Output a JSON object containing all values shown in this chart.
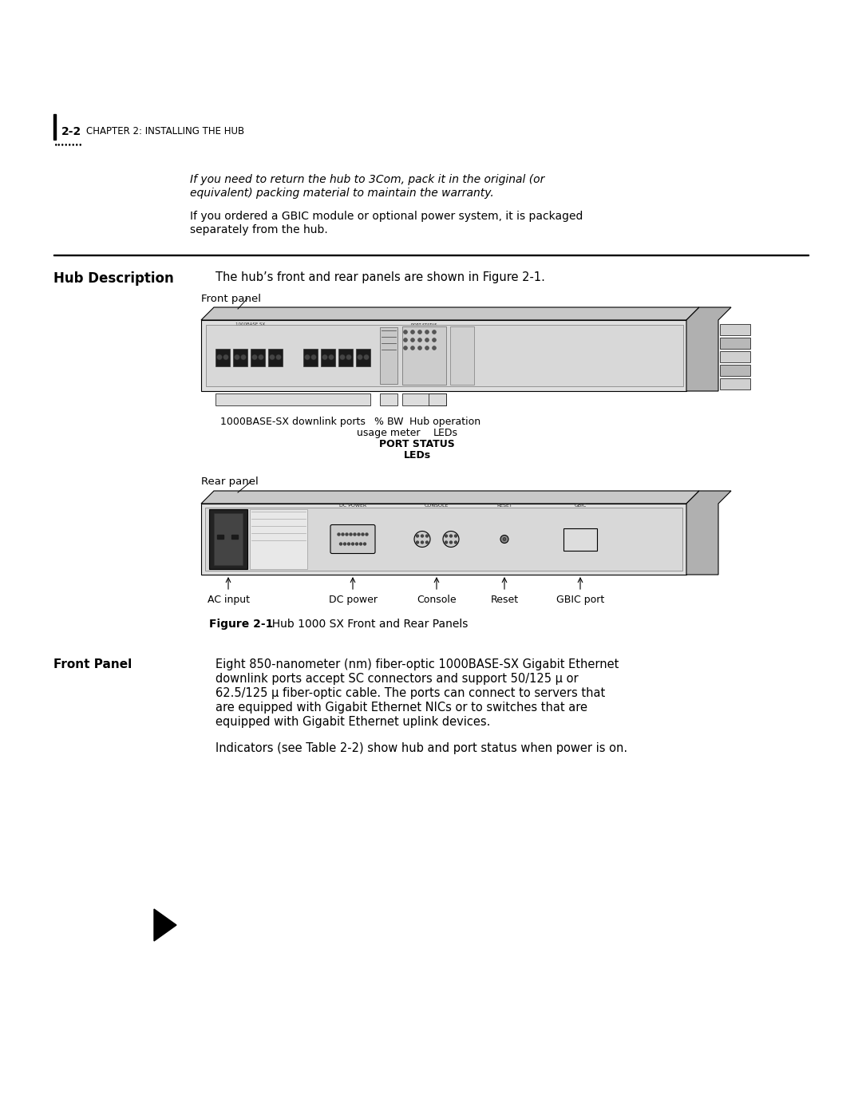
{
  "bg_color": "#ffffff",
  "page_width": 10.8,
  "page_height": 13.97,
  "header_text": "2-2",
  "header_chapter": "CHAPTER 2: INSTALLING THE HUB",
  "note_italic_1": "If you need to return the hub to 3Com, pack it in the original (or",
  "note_italic_2": "equivalent) packing material to maintain the warranty.",
  "note_normal_1": "If you ordered a GBIC module or optional power system, it is packaged",
  "note_normal_2": "separately from the hub.",
  "section_title": "Hub Description",
  "section_intro": "The hub’s front and rear panels are shown in Figure 2-1.",
  "front_panel_label": "Front panel",
  "rear_panel_label": "Rear panel",
  "figure_caption_bold": "Figure 2-1",
  "figure_caption_rest": "  Hub 1000 SX Front and Rear Panels",
  "ann_downlink": "1000BASE-SX downlink ports",
  "ann_bw_1": "% BW",
  "ann_bw_2": "usage meter",
  "ann_hub_1": "Hub operation",
  "ann_hub_2": "LEDs",
  "ann_port_status_1": "PORT STATUS",
  "ann_port_status_2": "LEDs",
  "rear_ann_labels": [
    "AC input",
    "DC power",
    "Console",
    "Reset",
    "GBIC port"
  ],
  "fp_subsection_title": "Front Panel",
  "fp_text_1": "Eight 850-nanometer (nm) fiber-optic 1000BASE-SX Gigabit Ethernet",
  "fp_text_2": "downlink ports accept SC connectors and support 50/125 μ or",
  "fp_text_3": "62.5/125 μ fiber-optic cable. The ports can connect to servers that",
  "fp_text_4": "are equipped with Gigabit Ethernet NICs or to switches that are",
  "fp_text_5": "equipped with Gigabit Ethernet uplink devices.",
  "fp_text_6": "Indicators (see Table 2-2) show hub and port status when power is on."
}
